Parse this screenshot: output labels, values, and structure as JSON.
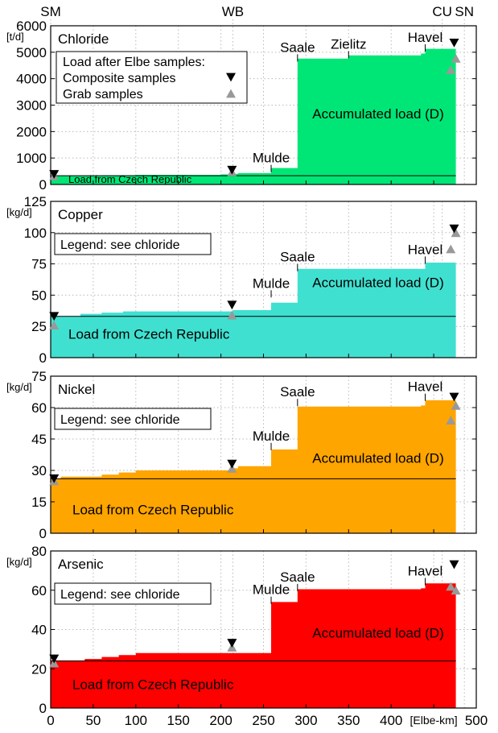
{
  "top_labels": [
    {
      "text": "SM",
      "km": 0
    },
    {
      "text": "WB",
      "km": 214
    },
    {
      "text": "CU",
      "km": 460
    },
    {
      "text": "SN",
      "km": 486
    }
  ],
  "x_axis": {
    "ticks": [
      0,
      50,
      100,
      150,
      200,
      250,
      300,
      350,
      400,
      450,
      500
    ],
    "tick_labels": [
      "0",
      "50",
      "100",
      "150",
      "200",
      "250",
      "300",
      "350",
      "400",
      "",
      "500"
    ],
    "unit_label": "[Elbe-km]",
    "range": [
      0,
      500
    ]
  },
  "colors": {
    "chloride": "#00e676",
    "copper": "#40e0d0",
    "nickel": "#ffa500",
    "arsenic": "#ff0000",
    "composite": "#000000",
    "grab": "#999999"
  },
  "chart_data": [
    {
      "type": "area",
      "id": "chloride",
      "title": "Chloride",
      "ylabel": "[t/d]",
      "ylim": [
        0,
        6000
      ],
      "yticks": [
        0,
        1000,
        2000,
        3000,
        4000,
        5000,
        6000
      ],
      "czech_load": 330,
      "czech_label": "Load from Czech Republic",
      "accum_label": "Accumulated load (D)",
      "steps": [
        [
          0,
          330
        ],
        [
          60,
          345
        ],
        [
          100,
          360
        ],
        [
          200,
          380
        ],
        [
          214,
          400
        ],
        [
          220,
          430
        ],
        [
          259,
          620
        ],
        [
          290,
          4760
        ],
        [
          350,
          4880
        ],
        [
          435,
          4950
        ],
        [
          440,
          5130
        ],
        [
          476,
          5130
        ]
      ],
      "tributaries": [
        {
          "name": "Mulde",
          "km": 259,
          "label_y": 650
        },
        {
          "name": "Saale",
          "km": 290,
          "label_y": 4830
        },
        {
          "name": "Zielitz",
          "km": 350,
          "label_y": 4950
        },
        {
          "name": "Havel",
          "km": 440,
          "label_y": 5210
        }
      ],
      "legend": {
        "title": "Load after Elbe samples:",
        "composite": "Composite samples",
        "grab": "Grab samples"
      },
      "composite_points": [
        [
          4,
          380
        ],
        [
          213,
          540
        ],
        [
          474,
          5350
        ]
      ],
      "grab_points": [
        [
          4,
          330
        ],
        [
          213,
          480
        ],
        [
          470,
          4340
        ],
        [
          476,
          4770
        ]
      ]
    },
    {
      "type": "area",
      "id": "copper",
      "title": "Copper",
      "ylabel": "[kg/d]",
      "ylim": [
        0,
        125
      ],
      "yticks": [
        0,
        25,
        50,
        75,
        100,
        125
      ],
      "czech_load": 33,
      "czech_label": "Load from Czech Republic",
      "accum_label": "Accumulated load (D)",
      "steps": [
        [
          0,
          33
        ],
        [
          35,
          35
        ],
        [
          60,
          36
        ],
        [
          85,
          37
        ],
        [
          214,
          38
        ],
        [
          259,
          44
        ],
        [
          290,
          71
        ],
        [
          440,
          76
        ],
        [
          476,
          76
        ]
      ],
      "tributaries": [
        {
          "name": "Mulde",
          "km": 259,
          "label_y": 52
        },
        {
          "name": "Saale",
          "km": 290,
          "label_y": 73
        },
        {
          "name": "Havel",
          "km": 440,
          "label_y": 79
        }
      ],
      "legend_note": "Legend: see chloride",
      "composite_points": [
        [
          4,
          33
        ],
        [
          213,
          42
        ],
        [
          474,
          103
        ]
      ],
      "grab_points": [
        [
          4,
          26
        ],
        [
          213,
          34
        ],
        [
          470,
          87
        ],
        [
          476,
          100
        ]
      ]
    },
    {
      "type": "area",
      "id": "nickel",
      "title": "Nickel",
      "ylabel": "[kg/d]",
      "ylim": [
        0,
        75
      ],
      "yticks": [
        0,
        15,
        30,
        45,
        60,
        75
      ],
      "czech_load": 26,
      "czech_label": "Load from Czech Republic",
      "accum_label": "Accumulated load (D)",
      "steps": [
        [
          0,
          26
        ],
        [
          12,
          27
        ],
        [
          60,
          28
        ],
        [
          80,
          29
        ],
        [
          100,
          30
        ],
        [
          214,
          31
        ],
        [
          220,
          32
        ],
        [
          259,
          40
        ],
        [
          290,
          60.5
        ],
        [
          435,
          61
        ],
        [
          440,
          63.5
        ],
        [
          476,
          63.5
        ]
      ],
      "tributaries": [
        {
          "name": "Mulde",
          "km": 259,
          "label_y": 42
        },
        {
          "name": "Saale",
          "km": 290,
          "label_y": 63
        },
        {
          "name": "Havel",
          "km": 440,
          "label_y": 65.5
        }
      ],
      "legend_note": "Legend: see chloride",
      "composite_points": [
        [
          4,
          26
        ],
        [
          213,
          33
        ],
        [
          474,
          65
        ]
      ],
      "grab_points": [
        [
          4,
          25
        ],
        [
          213,
          31
        ],
        [
          470,
          54
        ],
        [
          476,
          61
        ]
      ]
    },
    {
      "type": "area",
      "id": "arsenic",
      "title": "Arsenic",
      "ylabel": "[kg/d]",
      "ylim": [
        0,
        80
      ],
      "yticks": [
        0,
        20,
        40,
        60,
        80
      ],
      "czech_load": 24,
      "czech_label": "Load from Czech Republic",
      "accum_label": "Accumulated load (D)",
      "steps": [
        [
          0,
          24
        ],
        [
          40,
          25
        ],
        [
          60,
          26
        ],
        [
          80,
          27
        ],
        [
          100,
          28
        ],
        [
          214,
          28
        ],
        [
          259,
          54
        ],
        [
          290,
          60.5
        ],
        [
          435,
          61
        ],
        [
          440,
          63.5
        ],
        [
          476,
          63.5
        ]
      ],
      "tributaries": [
        {
          "name": "Mulde",
          "km": 259,
          "label_y": 55.5
        },
        {
          "name": "Saale",
          "km": 290,
          "label_y": 62
        },
        {
          "name": "Havel",
          "km": 440,
          "label_y": 65
        }
      ],
      "legend_note": "Legend: see chloride",
      "composite_points": [
        [
          4,
          25
        ],
        [
          213,
          33
        ],
        [
          474,
          73
        ]
      ],
      "grab_points": [
        [
          4,
          23
        ],
        [
          213,
          31
        ],
        [
          470,
          62
        ],
        [
          476,
          60
        ]
      ]
    }
  ]
}
